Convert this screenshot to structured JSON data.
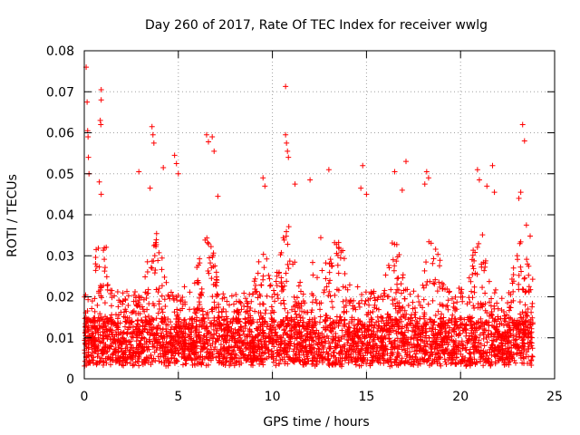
{
  "chart_data": {
    "type": "scatter",
    "title": "Day 260 of 2017, Rate Of TEC Index for receiver wwlg",
    "xlabel": "GPS time / hours",
    "ylabel": "ROTI / TECUs",
    "xlim": [
      0,
      25
    ],
    "ylim": [
      0,
      0.08
    ],
    "xticks": [
      0,
      5,
      10,
      15,
      20,
      25
    ],
    "xtick_labels": [
      "0",
      "5",
      "10",
      "15",
      "20",
      "25"
    ],
    "yticks": [
      0,
      0.01,
      0.02,
      0.03,
      0.04,
      0.05,
      0.06,
      0.07,
      0.08
    ],
    "ytick_labels": [
      "0",
      "0.01",
      "0.02",
      "0.03",
      "0.04",
      "0.05",
      "0.06",
      "0.07",
      "0.08"
    ],
    "grid": true,
    "marker": "+",
    "series": [
      {
        "name": "ROTI",
        "color": "#ff0000",
        "points": [
          [
            0.1,
            0.076
          ],
          [
            0.15,
            0.0675
          ],
          [
            0.18,
            0.0605
          ],
          [
            0.2,
            0.059
          ],
          [
            0.22,
            0.054
          ],
          [
            0.25,
            0.05
          ],
          [
            0.9,
            0.0705
          ],
          [
            0.9,
            0.068
          ],
          [
            0.85,
            0.063
          ],
          [
            0.88,
            0.062
          ],
          [
            0.8,
            0.048
          ],
          [
            0.9,
            0.045
          ],
          [
            3.6,
            0.0615
          ],
          [
            3.65,
            0.0595
          ],
          [
            3.7,
            0.0575
          ],
          [
            3.5,
            0.0465
          ],
          [
            4.2,
            0.0515
          ],
          [
            2.9,
            0.0505
          ],
          [
            4.8,
            0.0545
          ],
          [
            4.9,
            0.0525
          ],
          [
            5.0,
            0.05
          ],
          [
            6.5,
            0.0595
          ],
          [
            6.6,
            0.0578
          ],
          [
            6.8,
            0.059
          ],
          [
            6.9,
            0.0555
          ],
          [
            7.1,
            0.0445
          ],
          [
            9.5,
            0.049
          ],
          [
            9.6,
            0.047
          ],
          [
            10.7,
            0.0713
          ],
          [
            10.7,
            0.0595
          ],
          [
            10.75,
            0.0575
          ],
          [
            10.8,
            0.0555
          ],
          [
            10.85,
            0.054
          ],
          [
            11.2,
            0.0475
          ],
          [
            12.0,
            0.0485
          ],
          [
            13.0,
            0.051
          ],
          [
            14.8,
            0.052
          ],
          [
            14.7,
            0.0465
          ],
          [
            15.0,
            0.045
          ],
          [
            16.5,
            0.0505
          ],
          [
            17.1,
            0.053
          ],
          [
            16.9,
            0.046
          ],
          [
            18.2,
            0.0505
          ],
          [
            18.3,
            0.049
          ],
          [
            18.1,
            0.0475
          ],
          [
            20.9,
            0.051
          ],
          [
            21.0,
            0.0485
          ],
          [
            21.4,
            0.047
          ],
          [
            21.7,
            0.052
          ],
          [
            21.8,
            0.0455
          ],
          [
            23.3,
            0.062
          ],
          [
            23.4,
            0.058
          ],
          [
            23.2,
            0.0455
          ],
          [
            23.1,
            0.044
          ],
          [
            23.5,
            0.0375
          ],
          [
            23.7,
            0.0348
          ]
        ]
      }
    ]
  }
}
